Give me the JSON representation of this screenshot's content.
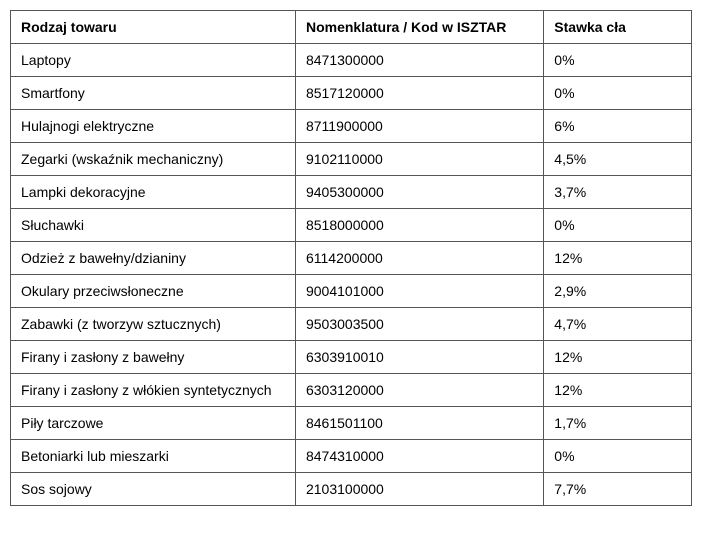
{
  "table": {
    "headers": {
      "col1": "Rodzaj towaru",
      "col2": "Nomenklatura / Kod w ISZTAR",
      "col3": "Stawka cła"
    },
    "rows": [
      {
        "col1": "Laptopy",
        "col2": "8471300000",
        "col3": "0%"
      },
      {
        "col1": "Smartfony",
        "col2": "8517120000",
        "col3": "0%"
      },
      {
        "col1": "Hulajnogi elektryczne",
        "col2": "8711900000",
        "col3": "6%"
      },
      {
        "col1": "Zegarki (wskaźnik mechaniczny)",
        "col2": "9102110000",
        "col3": "4,5%"
      },
      {
        "col1": "Lampki dekoracyjne",
        "col2": "9405300000",
        "col3": "3,7%"
      },
      {
        "col1": "Słuchawki",
        "col2": "8518000000",
        "col3": "0%"
      },
      {
        "col1": "Odzież z bawełny/dzianiny",
        "col2": "6114200000",
        "col3": "12%"
      },
      {
        "col1": "Okulary przeciwsłoneczne",
        "col2": "9004101000",
        "col3": "2,9%"
      },
      {
        "col1": "Zabawki (z tworzyw sztucznych)",
        "col2": "9503003500",
        "col3": "4,7%"
      },
      {
        "col1": "Firany i zasłony z bawełny",
        "col2": "6303910010",
        "col3": "12%"
      },
      {
        "col1": "Firany i zasłony z włókien syntetycznych",
        "col2": "6303120000",
        "col3": "12%"
      },
      {
        "col1": "Piły tarczowe",
        "col2": "8461501100",
        "col3": "1,7%"
      },
      {
        "col1": "Betoniarki lub mieszarki",
        "col2": "8474310000",
        "col3": "0%"
      },
      {
        "col1": "Sos sojowy",
        "col2": "2103100000",
        "col3": "7,7%"
      }
    ]
  }
}
